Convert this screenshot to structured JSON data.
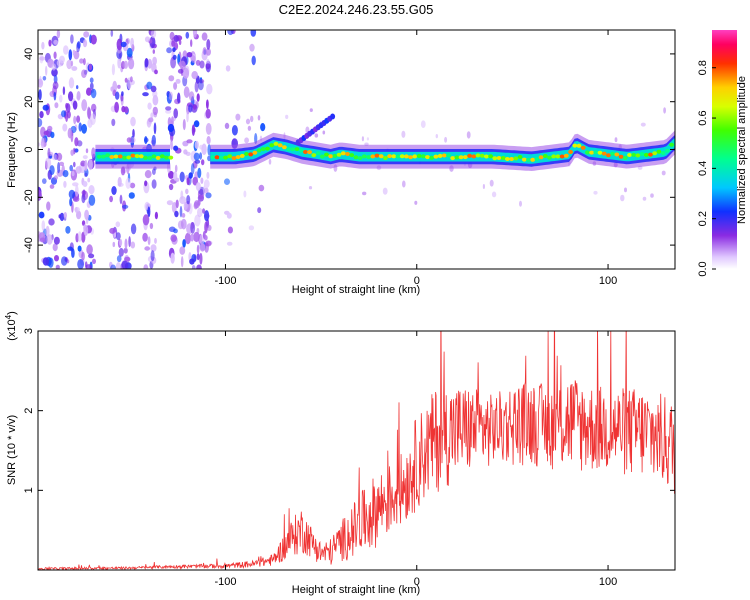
{
  "title": "C2E2.2024.246.23.55.G05",
  "chart_data": [
    {
      "type": "heatmap",
      "title": "C2E2.2024.246.23.55.G05",
      "xlabel": "Height of straight line (km)",
      "ylabel": "Frequency (Hz)",
      "xlim": [
        -198,
        135
      ],
      "ylim": [
        -50,
        50
      ],
      "xticks": [
        -100,
        0,
        100
      ],
      "xtick_labels": [
        "-100",
        "0",
        "100"
      ],
      "yticks": [
        -40,
        -20,
        0,
        20,
        40
      ],
      "ytick_labels": [
        "-40",
        "-20",
        "0",
        "20",
        "40"
      ],
      "colorbar": {
        "label": "Normalized spectral amplitude",
        "range": [
          0,
          0.95
        ],
        "ticks": [
          0.0,
          0.2,
          0.4,
          0.6,
          0.8
        ],
        "tick_labels": [
          "0.0",
          "0.2",
          "0.4",
          "0.6",
          "0.8"
        ]
      },
      "ridge": {
        "name": "signal frequency track",
        "x": [
          -168,
          -140,
          -125,
          -108,
          -95,
          -85,
          -80,
          -75,
          -68,
          -60,
          -52,
          -45,
          -40,
          -30,
          -20,
          0,
          20,
          40,
          60,
          70,
          80,
          83,
          90,
          100,
          110,
          120,
          130,
          135
        ],
        "y": [
          -3,
          -3,
          -3,
          -3,
          -3,
          -2,
          0,
          2,
          1,
          -1,
          -2,
          -3,
          -2,
          -3,
          -3,
          -3,
          -3,
          -3,
          -4,
          -3,
          -2,
          2,
          -1,
          -2,
          -3,
          -2,
          -1,
          3
        ]
      }
    },
    {
      "type": "line",
      "xlabel": "Height of straight line (km)",
      "ylabel": "SNR (10 * v/v)",
      "y_multiplier_label": "(x10",
      "y_multiplier_exp": "4",
      "xlim": [
        -198,
        135
      ],
      "ylim": [
        0,
        3
      ],
      "xticks": [
        -100,
        0,
        100
      ],
      "xtick_labels": [
        "-100",
        "0",
        "100"
      ],
      "yticks": [
        1,
        2,
        3
      ],
      "ytick_labels": [
        "1",
        "2",
        "3"
      ],
      "series": [
        {
          "name": "SNR",
          "color": "#ef3333",
          "envelope": {
            "x": [
              -198,
              -150,
              -130,
              -100,
              -85,
              -75,
              -65,
              -60,
              -55,
              -50,
              -45,
              -40,
              -30,
              -20,
              -10,
              -5,
              0,
              5,
              10,
              20,
              30,
              40,
              50,
              60,
              70,
              80,
              90,
              100,
              110,
              120,
              130,
              135
            ],
            "lo": [
              0.0,
              0.01,
              0.02,
              0.02,
              0.03,
              0.05,
              0.15,
              0.2,
              0.15,
              0.05,
              0.05,
              0.1,
              0.15,
              0.3,
              0.5,
              0.6,
              0.75,
              0.85,
              0.95,
              1.1,
              1.2,
              1.3,
              1.3,
              1.3,
              1.25,
              1.2,
              1.2,
              1.2,
              1.15,
              1.1,
              1.0,
              0.9
            ],
            "hi": [
              0.03,
              0.04,
              0.06,
              0.08,
              0.12,
              0.2,
              0.65,
              0.8,
              0.55,
              0.35,
              0.4,
              0.6,
              0.95,
              1.25,
              1.4,
              1.6,
              1.95,
              2.1,
              2.3,
              2.35,
              2.3,
              2.2,
              2.35,
              2.4,
              2.3,
              2.5,
              2.35,
              2.3,
              2.3,
              2.3,
              2.2,
              2.1
            ]
          }
        }
      ]
    }
  ]
}
